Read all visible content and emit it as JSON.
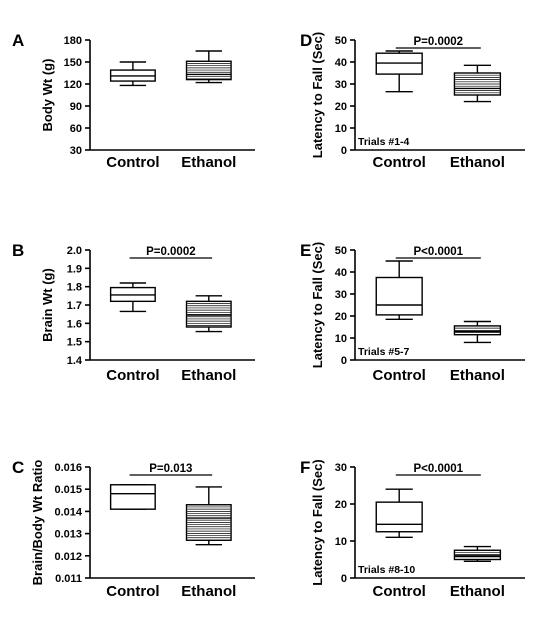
{
  "chart_data": [
    {
      "id": "A",
      "type": "box",
      "panel_letter": "A",
      "ylabel": "Body Wt (g)",
      "ylim": [
        30,
        180
      ],
      "yticks": [
        30,
        60,
        90,
        120,
        150,
        180
      ],
      "categories": [
        "Control",
        "Ethanol"
      ],
      "boxes": [
        {
          "min": 118,
          "q1": 124,
          "median": 131,
          "q3": 139,
          "max": 150
        },
        {
          "min": 122,
          "q1": 126,
          "median": 133,
          "q3": 151,
          "max": 165
        }
      ],
      "p_value": "",
      "annotation": ""
    },
    {
      "id": "B",
      "type": "box",
      "panel_letter": "B",
      "ylabel": "Brain Wt (g)",
      "ylim": [
        1.4,
        2.0
      ],
      "yticks": [
        "1.4",
        "1.5",
        "1.6",
        "1.7",
        "1.8",
        "1.9",
        "2.0"
      ],
      "categories": [
        "Control",
        "Ethanol"
      ],
      "boxes": [
        {
          "min": 1.665,
          "q1": 1.72,
          "median": 1.755,
          "q3": 1.795,
          "max": 1.82
        },
        {
          "min": 1.555,
          "q1": 1.58,
          "median": 1.645,
          "q3": 1.72,
          "max": 1.75
        }
      ],
      "p_value": "P=0.0002",
      "annotation": ""
    },
    {
      "id": "C",
      "type": "box",
      "panel_letter": "C",
      "ylabel": "Brain/Body Wt Ratio",
      "ylim": [
        0.011,
        0.016
      ],
      "yticks": [
        "0.011",
        "0.012",
        "0.013",
        "0.014",
        "0.015",
        "0.016"
      ],
      "categories": [
        "Control",
        "Ethanol"
      ],
      "boxes": [
        {
          "min": 0.0141,
          "q1": 0.0141,
          "median": 0.0148,
          "q3": 0.0152,
          "max": 0.0152
        },
        {
          "min": 0.0125,
          "q1": 0.0127,
          "median": 0.0137,
          "q3": 0.0143,
          "max": 0.0151
        }
      ],
      "p_value": "P=0.013",
      "annotation": ""
    },
    {
      "id": "D",
      "type": "box",
      "panel_letter": "D",
      "ylabel": "Latency to  Fall (Sec)",
      "ylim": [
        0,
        50
      ],
      "yticks": [
        0,
        10,
        20,
        30,
        40,
        50
      ],
      "categories": [
        "Control",
        "Ethanol"
      ],
      "boxes": [
        {
          "min": 26.5,
          "q1": 34.5,
          "median": 39.5,
          "q3": 44,
          "max": 45
        },
        {
          "min": 22,
          "q1": 25,
          "median": 28,
          "q3": 35,
          "max": 38.5
        }
      ],
      "p_value": "P=0.0002",
      "annotation": "Trials #1-4"
    },
    {
      "id": "E",
      "type": "box",
      "panel_letter": "E",
      "ylabel": "Latency to  Fall (Sec)",
      "ylim": [
        0,
        50
      ],
      "yticks": [
        0,
        10,
        20,
        30,
        40,
        50
      ],
      "categories": [
        "Control",
        "Ethanol"
      ],
      "boxes": [
        {
          "min": 18.5,
          "q1": 20.5,
          "median": 25,
          "q3": 37.5,
          "max": 45
        },
        {
          "min": 8,
          "q1": 11.5,
          "median": 13,
          "q3": 15.5,
          "max": 17.5
        }
      ],
      "p_value": "P<0.0001",
      "annotation": "Trials #5-7"
    },
    {
      "id": "F",
      "type": "box",
      "panel_letter": "F",
      "ylabel": "Latency to  Fall (Sec)",
      "ylim": [
        0,
        30
      ],
      "yticks": [
        0,
        10,
        20,
        30
      ],
      "categories": [
        "Control",
        "Ethanol"
      ],
      "boxes": [
        {
          "min": 11,
          "q1": 12.5,
          "median": 14.5,
          "q3": 20.5,
          "max": 24
        },
        {
          "min": 4.5,
          "q1": 5,
          "median": 6,
          "q3": 7.5,
          "max": 8.5
        }
      ],
      "p_value": "P<0.0001",
      "annotation": "Trials #8-10"
    }
  ]
}
